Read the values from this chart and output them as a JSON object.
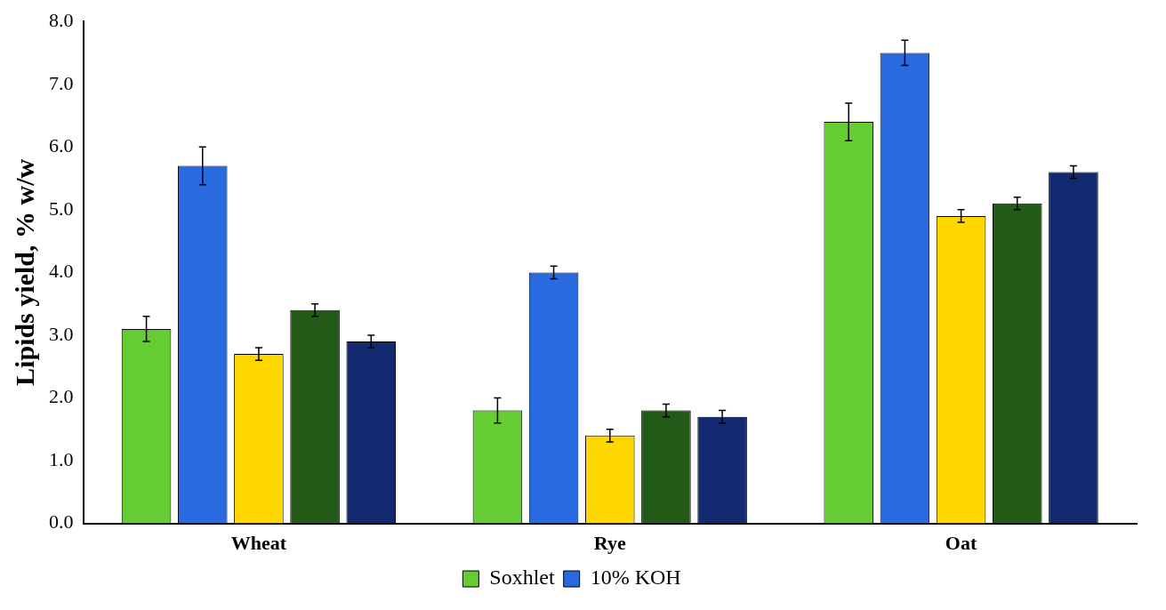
{
  "chart_data": {
    "type": "bar",
    "ylabel": "Lipids yield, % w/w",
    "categories": [
      "Wheat",
      "Rye",
      "Oat"
    ],
    "ylim": [
      0,
      8
    ],
    "yticks": [
      {
        "value": 0,
        "label": "0.0"
      },
      {
        "value": 1,
        "label": "1.0"
      },
      {
        "value": 2,
        "label": "2.0"
      },
      {
        "value": 3,
        "label": "3.0"
      },
      {
        "value": 4,
        "label": "4.0"
      },
      {
        "value": 5,
        "label": "5.0"
      },
      {
        "value": 6,
        "label": "6.0"
      },
      {
        "value": 7,
        "label": "7.0"
      },
      {
        "value": 8,
        "label": "8.0"
      }
    ],
    "grid": false,
    "legend": "bottom",
    "series": [
      {
        "name": "Soxhlet",
        "color": "#66cc33",
        "values": [
          3.1,
          1.8,
          6.4
        ],
        "errors": [
          0.2,
          0.2,
          0.3
        ]
      },
      {
        "name": "10% KOH",
        "color": "#2a6ae0",
        "values": [
          5.7,
          4.0,
          7.5
        ],
        "errors": [
          0.3,
          0.1,
          0.2
        ]
      },
      {
        "color": "#ffd700",
        "values": [
          2.7,
          1.4,
          4.9
        ],
        "errors": [
          0.1,
          0.1,
          0.1
        ]
      },
      {
        "color": "#245a18",
        "values": [
          3.4,
          1.8,
          5.1
        ],
        "errors": [
          0.1,
          0.1,
          0.1
        ]
      },
      {
        "color": "#132a70",
        "values": [
          2.9,
          1.7,
          5.6
        ],
        "errors": [
          0.1,
          0.1,
          0.1
        ]
      }
    ]
  }
}
